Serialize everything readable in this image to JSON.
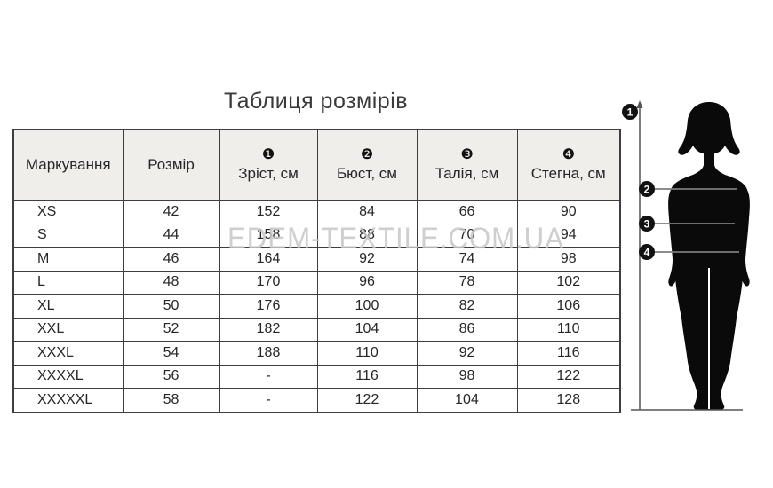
{
  "chart_data": {
    "type": "table",
    "title": "Таблиця розмірів",
    "watermark": "EDEM-TEXTILE.COM.UA",
    "columns": [
      {
        "badge": "",
        "label": "Маркування"
      },
      {
        "badge": "",
        "label": "Розмір"
      },
      {
        "badge": "❶",
        "label": "Зріст, см"
      },
      {
        "badge": "❷",
        "label": "Бюст, см"
      },
      {
        "badge": "❸",
        "label": "Талія, см"
      },
      {
        "badge": "❹",
        "label": "Стегна, см"
      }
    ],
    "rows": [
      [
        "XS",
        "42",
        "152",
        "84",
        "66",
        "90"
      ],
      [
        "S",
        "44",
        "158",
        "88",
        "70",
        "94"
      ],
      [
        "M",
        "46",
        "164",
        "92",
        "74",
        "98"
      ],
      [
        "L",
        "48",
        "170",
        "96",
        "78",
        "102"
      ],
      [
        "XL",
        "50",
        "176",
        "100",
        "82",
        "106"
      ],
      [
        "XXL",
        "52",
        "182",
        "104",
        "86",
        "110"
      ],
      [
        "XXXL",
        "54",
        "188",
        "110",
        "92",
        "116"
      ],
      [
        "XXXXL",
        "56",
        "-",
        "116",
        "98",
        "122"
      ],
      [
        "XXXXXL",
        "58",
        "-",
        "122",
        "104",
        "128"
      ]
    ],
    "figure_markers": [
      "1",
      "2",
      "3",
      "4"
    ],
    "colors": {
      "header_bg": "#efeeeb",
      "border": "#3e3e3e",
      "silhouette": "#0a0a0a",
      "measure_line": "#5a5a5a",
      "watermark": "#c7c7c7"
    }
  }
}
